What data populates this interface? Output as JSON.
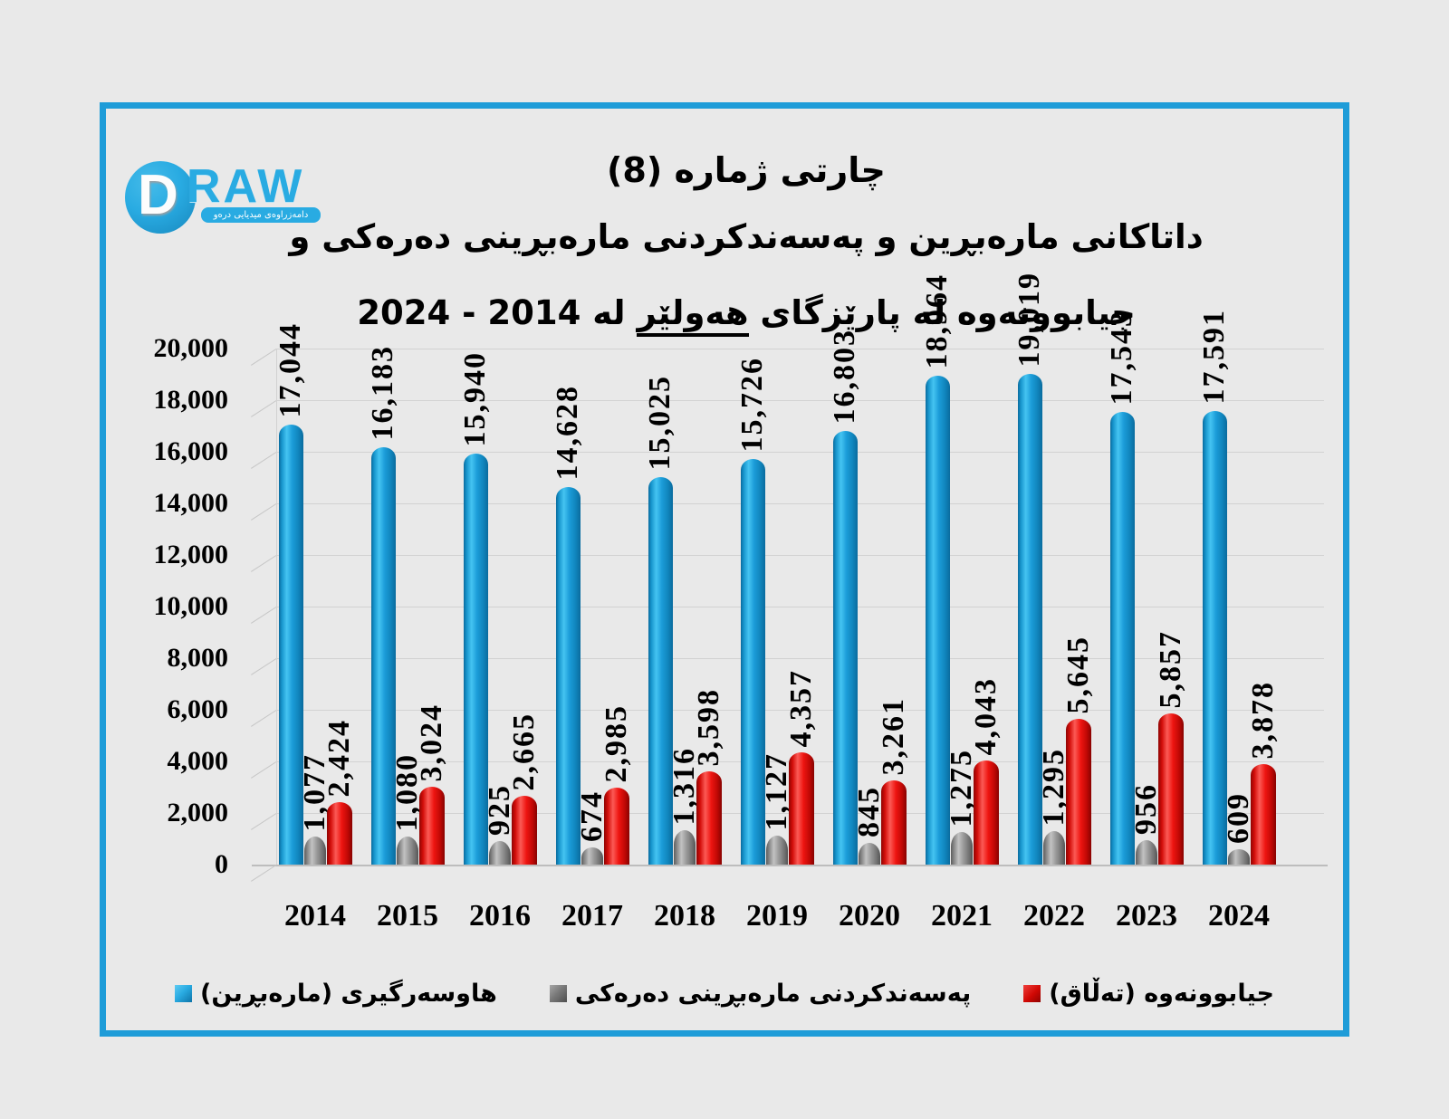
{
  "logo": {
    "letter_d": "D",
    "letters_raw": "RAW",
    "tagline": "دامەزراوەی میدیایی درەو",
    "brand_color": "#29abe2"
  },
  "title": {
    "line1": "چارتی ژماره (8)",
    "line2": "داتاکانی مارەبڕین و پەسەندکردنی مارەبڕینی دەرەکی و",
    "line3_prefix": "جیابوونەوه له پارێزگای ",
    "line3_underlined": "هەولێر",
    "line3_suffix": " له 2014 - 2024"
  },
  "chart_data": {
    "type": "bar",
    "title": "داتاکانی مارەبڕین و پەسەندکردنی مارەبڕینی دەرەکی و جیابوونەوه له پارێزگای هەولێر له 2014 - 2024",
    "categories": [
      "2014",
      "2015",
      "2016",
      "2017",
      "2018",
      "2019",
      "2020",
      "2021",
      "2022",
      "2023",
      "2024"
    ],
    "series": [
      {
        "name": "هاوسەرگیری (مارەبڕین)",
        "color": "#1b9cd8",
        "values": [
          17044,
          16183,
          15940,
          14628,
          15025,
          15726,
          16803,
          18964,
          19019,
          17543,
          17591
        ]
      },
      {
        "name": "پەسەندکردنی مارەبڕینی دەرەکی",
        "color": "#8c8c8c",
        "values": [
          1077,
          1080,
          925,
          674,
          1316,
          1127,
          845,
          1275,
          1295,
          956,
          609
        ]
      },
      {
        "name": "جیابوونەوه (تەڵاق)",
        "color": "#e8100c",
        "values": [
          2424,
          3024,
          2665,
          2985,
          3598,
          4357,
          3261,
          4043,
          5645,
          5857,
          3878
        ]
      }
    ],
    "xlabel": "",
    "ylabel": "",
    "ylim": [
      0,
      20000
    ],
    "ytick_step": 2000,
    "ytick_labels": [
      "0",
      "2,000",
      "4,000",
      "6,000",
      "8,000",
      "10,000",
      "12,000",
      "14,000",
      "16,000",
      "18,000",
      "20,000"
    ],
    "grid": true,
    "bar_style": "3d-cylinder",
    "value_labels": "rotated-vertical",
    "legend_position": "bottom"
  },
  "legend": {
    "items": [
      {
        "label": "هاوسەرگیری (مارەبڕین)",
        "color": "#1b9cd8"
      },
      {
        "label": "پەسەندکردنی مارەبڕینی دەرەکی",
        "color": "#8c8c8c"
      },
      {
        "label": "جیابوونەوه (تەڵاق)",
        "color": "#e8100c"
      }
    ]
  }
}
